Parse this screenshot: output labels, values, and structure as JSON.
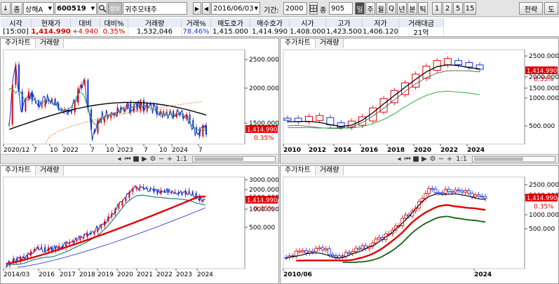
{
  "toolbar": {
    "down_arrow": "↓",
    "market_type": "종",
    "exchange": "상해A",
    "code": "600519",
    "name": "귀주모태주",
    "date": "2016/06/03",
    "period_label": "기간:",
    "period": "2000",
    "icon_label": "종",
    "count": "905",
    "units": [
      "일",
      "주",
      "월",
      "Q",
      "년",
      "분",
      "틱",
      "1",
      "2",
      "5",
      "15"
    ],
    "active_unit": "일",
    "strategy": "전략",
    "tool": "도"
  },
  "quote": {
    "headers": [
      "시각",
      "현재가",
      "대비",
      "대비%",
      "거래량",
      "거래%",
      "매도호가",
      "매수호가",
      "시가",
      "고가",
      "저가",
      "거래대금"
    ],
    "values": [
      "[15:00]",
      "1,414.990",
      "+4.940",
      "0.35%",
      "1,532,046",
      "78.46%",
      "1,415.000",
      "1,414.990",
      "1,408.000",
      "1,423.500",
      "1,406.120",
      "21억"
    ]
  },
  "panels": {
    "tab_chart": "주가차트",
    "tab_volume": "거래량",
    "nav_zoom": "1:1"
  },
  "charts": {
    "price_tag": "1,414.990",
    "pct_tag": "0.35%",
    "tl": {
      "y_ticks": [
        "2500.000",
        "2000.000",
        "1500.000"
      ],
      "x_ticks": [
        "2020/12",
        "7",
        "10",
        "2022",
        "7",
        "10",
        "2023",
        "7",
        "10",
        "2024",
        "7"
      ]
    },
    "tr": {
      "y_ticks": [
        "2500.000",
        "2000.000",
        "1500.000",
        "1000.000",
        "500.000"
      ],
      "x_ticks": [
        "2010",
        "2012",
        "2014",
        "2016",
        "2018",
        "2020",
        "2022",
        "2024"
      ]
    },
    "bl": {
      "y_ticks": [
        "3000.000",
        "2000.000",
        "1500.000",
        "1000.000",
        "500.000"
      ],
      "x_ticks": [
        "2014/03",
        "2016",
        "2017",
        "2018",
        "2019",
        "2020",
        "2021",
        "2022",
        "2023",
        "2024"
      ]
    },
    "br": {
      "y_ticks": [
        "2500.000",
        "2000.000",
        "1000.000",
        "500.000"
      ],
      "x_ticks": [
        "2010/06",
        "2024"
      ]
    }
  }
}
